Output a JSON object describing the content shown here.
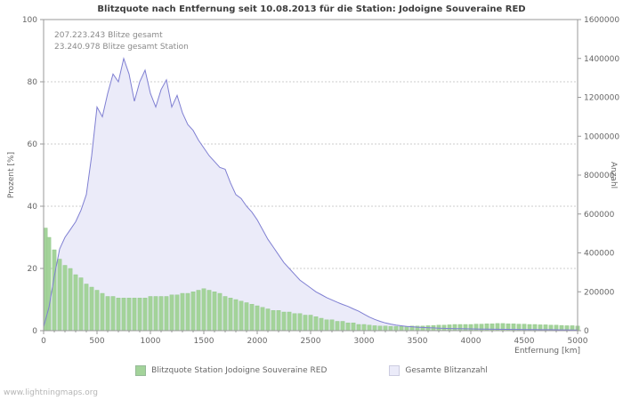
{
  "title": "Blitzquote nach Entfernung seit 10.08.2013 für die Station: Jodoigne Souveraine RED",
  "annotations": {
    "total": "207.223.243 Blitze gesamt",
    "station": "23.240.978 Blitze gesamt Station"
  },
  "axes": {
    "left_label": "Prozent   [%]",
    "right_label": "Anzahl",
    "x_label": "Entfernung   [km]"
  },
  "legend": {
    "items": [
      {
        "label": "Blitzquote Station Jodoigne Souveraine RED",
        "color": "#a3d39a"
      },
      {
        "label": "Gesamte Blitzanzahl",
        "color": "#ebebf9"
      }
    ]
  },
  "footer": "www.lightningmaps.org",
  "colors": {
    "bar_fill": "#a3d39a",
    "bar_stroke": "#8fc687",
    "area_fill": "#ebebf9",
    "area_line": "#7f7fd2",
    "grid": "#cccccc",
    "axis": "#999999"
  },
  "chart_data": {
    "type": "combo",
    "x_start": 0,
    "x_step": 50,
    "xlim": [
      0,
      5000
    ],
    "left_ylim": [
      0,
      100
    ],
    "right_ylim": [
      0,
      1600000
    ],
    "x_ticks": [
      0,
      500,
      1000,
      1500,
      2000,
      2500,
      3000,
      3500,
      4000,
      4500,
      5000
    ],
    "x_minor_step": 100,
    "left_ticks": [
      0,
      20,
      40,
      60,
      80,
      100
    ],
    "right_ticks": [
      0,
      200000,
      400000,
      600000,
      800000,
      1000000,
      1200000,
      1400000,
      1600000
    ],
    "series": [
      {
        "name": "Blitzquote Station Jodoigne Souveraine RED",
        "type": "bar",
        "axis": "left",
        "values": [
          33,
          30,
          26,
          23,
          21,
          20,
          18,
          17,
          15,
          14,
          13,
          12,
          11,
          11,
          10.5,
          10.5,
          10.5,
          10.5,
          10.5,
          10.5,
          11,
          11,
          11,
          11,
          11.5,
          11.5,
          12,
          12,
          12.5,
          13,
          13.5,
          13,
          12.5,
          12,
          11,
          10.5,
          10,
          9.5,
          9,
          8.5,
          8,
          7.5,
          7,
          6.5,
          6.5,
          6,
          6,
          5.5,
          5.5,
          5,
          5,
          4.5,
          4,
          3.5,
          3.5,
          3,
          3,
          2.5,
          2.5,
          2,
          2,
          1.8,
          1.6,
          1.5,
          1.5,
          1.4,
          1.4,
          1.4,
          1.4,
          1.5,
          1.5,
          1.5,
          1.6,
          1.7,
          1.8,
          1.8,
          1.9,
          2,
          2,
          2,
          2,
          2.1,
          2.1,
          2.2,
          2.2,
          2.3,
          2.3,
          2.2,
          2.2,
          2.1,
          2.1,
          2,
          2,
          1.9,
          1.9,
          1.8,
          1.8,
          1.7,
          1.6,
          1.6,
          1.5
        ]
      },
      {
        "name": "Gesamte Blitzanzahl",
        "type": "area",
        "axis": "right",
        "values": [
          20000,
          120000,
          280000,
          420000,
          480000,
          520000,
          560000,
          620000,
          700000,
          900000,
          1150000,
          1100000,
          1220000,
          1320000,
          1280000,
          1400000,
          1320000,
          1180000,
          1280000,
          1340000,
          1220000,
          1150000,
          1240000,
          1290000,
          1150000,
          1210000,
          1120000,
          1060000,
          1030000,
          980000,
          940000,
          900000,
          870000,
          840000,
          830000,
          760000,
          700000,
          680000,
          640000,
          610000,
          570000,
          520000,
          470000,
          430000,
          390000,
          350000,
          320000,
          290000,
          260000,
          240000,
          220000,
          200000,
          185000,
          170000,
          158000,
          146000,
          135000,
          125000,
          112000,
          100000,
          85000,
          70000,
          58000,
          48000,
          40000,
          34000,
          29000,
          25000,
          22000,
          20000,
          18000,
          16500,
          15000,
          14000,
          13000,
          12000,
          11000,
          10500,
          10000,
          9500,
          9000,
          8500,
          8000,
          7800,
          7500,
          7200,
          7000,
          6800,
          6500,
          6200,
          6000,
          5800,
          5500,
          5200,
          5000,
          4800,
          4500,
          4200,
          4000,
          3800,
          3500
        ]
      }
    ]
  }
}
